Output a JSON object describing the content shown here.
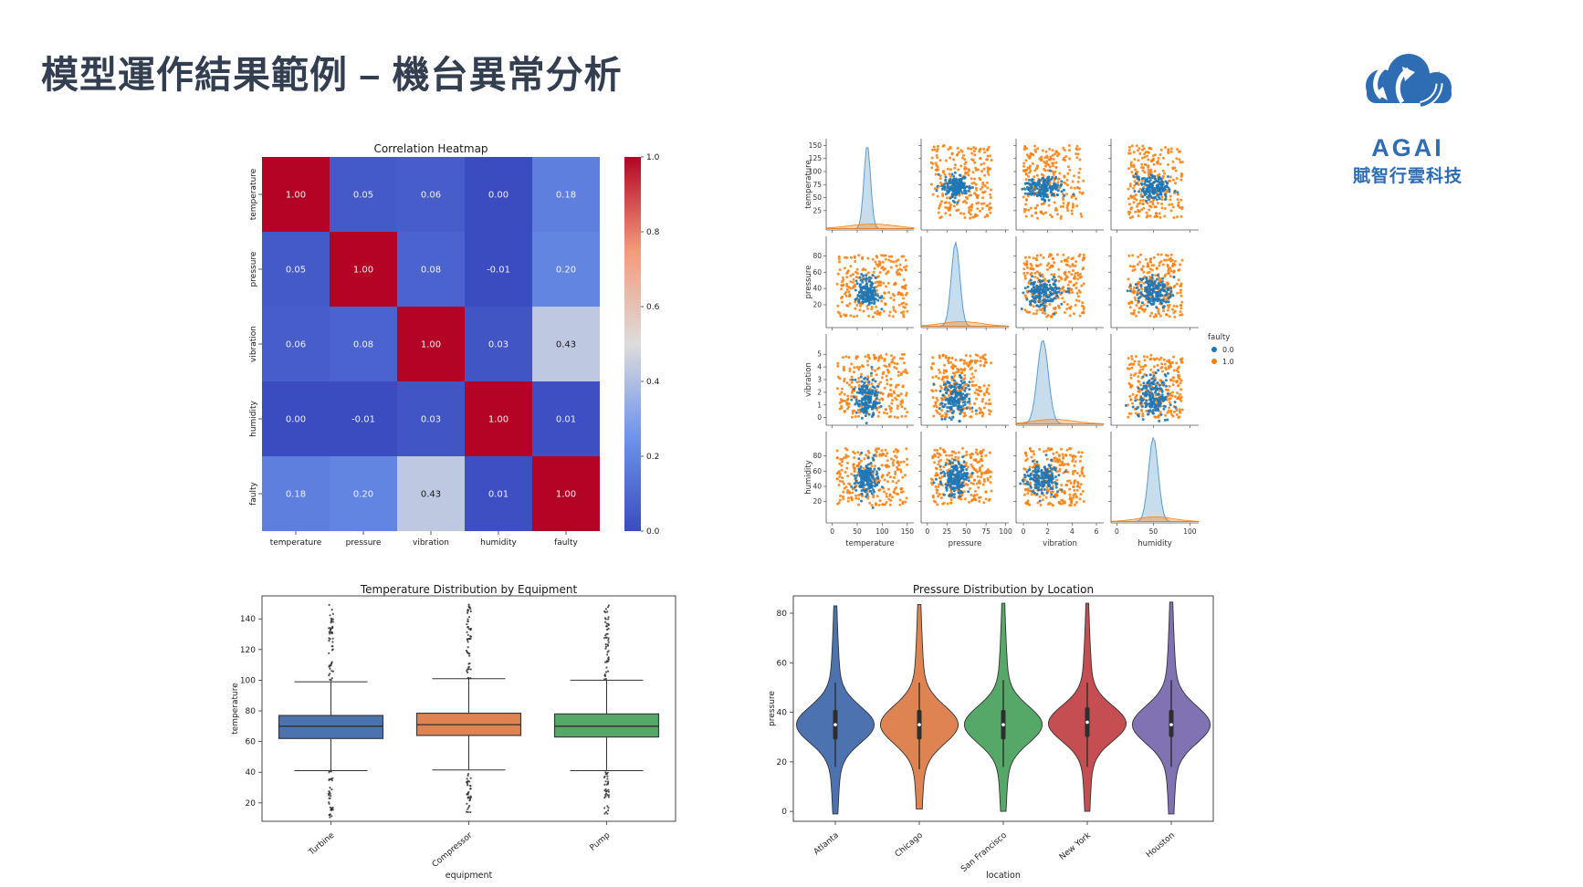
{
  "slide": {
    "title": "模型運作結果範例 – 機台異常分析",
    "title_color": "#333F50",
    "background": "#FFFFFF"
  },
  "logo": {
    "name": "AGAI",
    "company": "賦智行雲科技",
    "color": "#2E6DB4"
  },
  "chart_data": [
    {
      "id": "correlation-heatmap",
      "type": "heatmap",
      "title": "Correlation Heatmap",
      "labels": [
        "temperature",
        "pressure",
        "vibration",
        "humidity",
        "faulty"
      ],
      "matrix": [
        [
          1.0,
          0.05,
          0.06,
          0.0,
          0.18
        ],
        [
          0.05,
          1.0,
          0.08,
          -0.01,
          0.2
        ],
        [
          0.06,
          0.08,
          1.0,
          0.03,
          0.43
        ],
        [
          0.0,
          -0.01,
          0.03,
          1.0,
          0.01
        ],
        [
          0.18,
          0.2,
          0.43,
          0.01,
          1.0
        ]
      ],
      "colormap": "coolwarm",
      "vmin": 0.0,
      "vmax": 1.0,
      "colorbar_ticks": [
        1.0,
        0.8,
        0.6,
        0.4,
        0.2,
        0.0
      ]
    },
    {
      "id": "pairplot",
      "type": "scatter",
      "title": "",
      "variables": [
        {
          "name": "temperature",
          "axis_min": -12,
          "axis_max": 163,
          "xticks": [
            0,
            50,
            100,
            150
          ],
          "yticks": [
            25,
            50,
            75,
            100,
            125,
            150
          ],
          "normal_mean": 70,
          "normal_sd": 11,
          "uniform_min": 10,
          "uniform_max": 150
        },
        {
          "name": "pressure",
          "axis_min": -8,
          "axis_max": 104,
          "xticks": [
            0,
            25,
            50,
            75,
            100
          ],
          "yticks": [
            20,
            40,
            60,
            80
          ],
          "normal_mean": 36,
          "normal_sd": 9,
          "uniform_min": 5,
          "uniform_max": 82
        },
        {
          "name": "vibration",
          "axis_min": -0.6,
          "axis_max": 6.6,
          "xticks": [
            0,
            2,
            4,
            6
          ],
          "yticks": [
            0,
            1,
            2,
            3,
            4,
            5
          ],
          "normal_mean": 1.6,
          "normal_sd": 0.75,
          "uniform_min": 0,
          "uniform_max": 5
        },
        {
          "name": "humidity",
          "axis_min": -8,
          "axis_max": 112,
          "xticks": [
            0,
            50,
            100
          ],
          "yticks": [
            20,
            40,
            60,
            80
          ],
          "normal_mean": 50,
          "normal_sd": 11,
          "uniform_min": 15,
          "uniform_max": 90
        }
      ],
      "legend": {
        "title": "faulty",
        "entries": [
          {
            "label": "0.0",
            "color": "#1f77b4"
          },
          {
            "label": "1.0",
            "color": "#ff7f0e"
          }
        ]
      }
    },
    {
      "id": "temperature-boxplot",
      "type": "box",
      "title": "Temperature Distribution by Equipment",
      "xlabel": "equipment",
      "ylabel": "temperature",
      "categories": [
        "Turbine",
        "Compressor",
        "Pump"
      ],
      "colors": [
        "#4C72B0",
        "#DD8452",
        "#55A868"
      ],
      "yticks": [
        20,
        40,
        60,
        80,
        100,
        120,
        140
      ],
      "ylim": [
        8,
        155
      ],
      "stats": [
        {
          "q1": 62,
          "median": 70,
          "q3": 77,
          "whisker_low": 41,
          "whisker_high": 99,
          "outlier_low": 10,
          "outlier_high": 150
        },
        {
          "q1": 64,
          "median": 71,
          "q3": 78.5,
          "whisker_low": 41.5,
          "whisker_high": 101,
          "outlier_low": 11,
          "outlier_high": 150
        },
        {
          "q1": 63,
          "median": 70,
          "q3": 78,
          "whisker_low": 41,
          "whisker_high": 100,
          "outlier_low": 10,
          "outlier_high": 150
        }
      ]
    },
    {
      "id": "pressure-violin",
      "type": "area",
      "title": "Pressure Distribution by Location",
      "xlabel": "location",
      "ylabel": "pressure",
      "categories": [
        "Atlanta",
        "Chicago",
        "San Francisco",
        "New York",
        "Houston"
      ],
      "colors": [
        "#4C72B0",
        "#DD8452",
        "#55A868",
        "#C44E52",
        "#8172B3"
      ],
      "yticks": [
        0,
        20,
        40,
        60,
        80
      ],
      "ylim": [
        -4,
        87
      ],
      "stats": [
        {
          "center": 35,
          "spread": 7.2,
          "q1": 29,
          "q3": 41,
          "median": 35,
          "w_lo": 18,
          "w_hi": 52,
          "min": -1,
          "max": 84
        },
        {
          "center": 35,
          "spread": 7.5,
          "q1": 29,
          "q3": 41,
          "median": 35,
          "w_lo": 17,
          "w_hi": 52,
          "min": 1,
          "max": 84
        },
        {
          "center": 35,
          "spread": 7.3,
          "q1": 29,
          "q3": 41,
          "median": 35,
          "w_lo": 18,
          "w_hi": 53,
          "min": 0,
          "max": 84
        },
        {
          "center": 35.5,
          "spread": 7.0,
          "q1": 30,
          "q3": 42,
          "median": 36,
          "w_lo": 18,
          "w_hi": 52,
          "min": 0,
          "max": 85
        },
        {
          "center": 35,
          "spread": 7.4,
          "q1": 30,
          "q3": 41,
          "median": 35,
          "w_lo": 18,
          "w_hi": 53,
          "min": -1,
          "max": 85
        }
      ]
    }
  ]
}
